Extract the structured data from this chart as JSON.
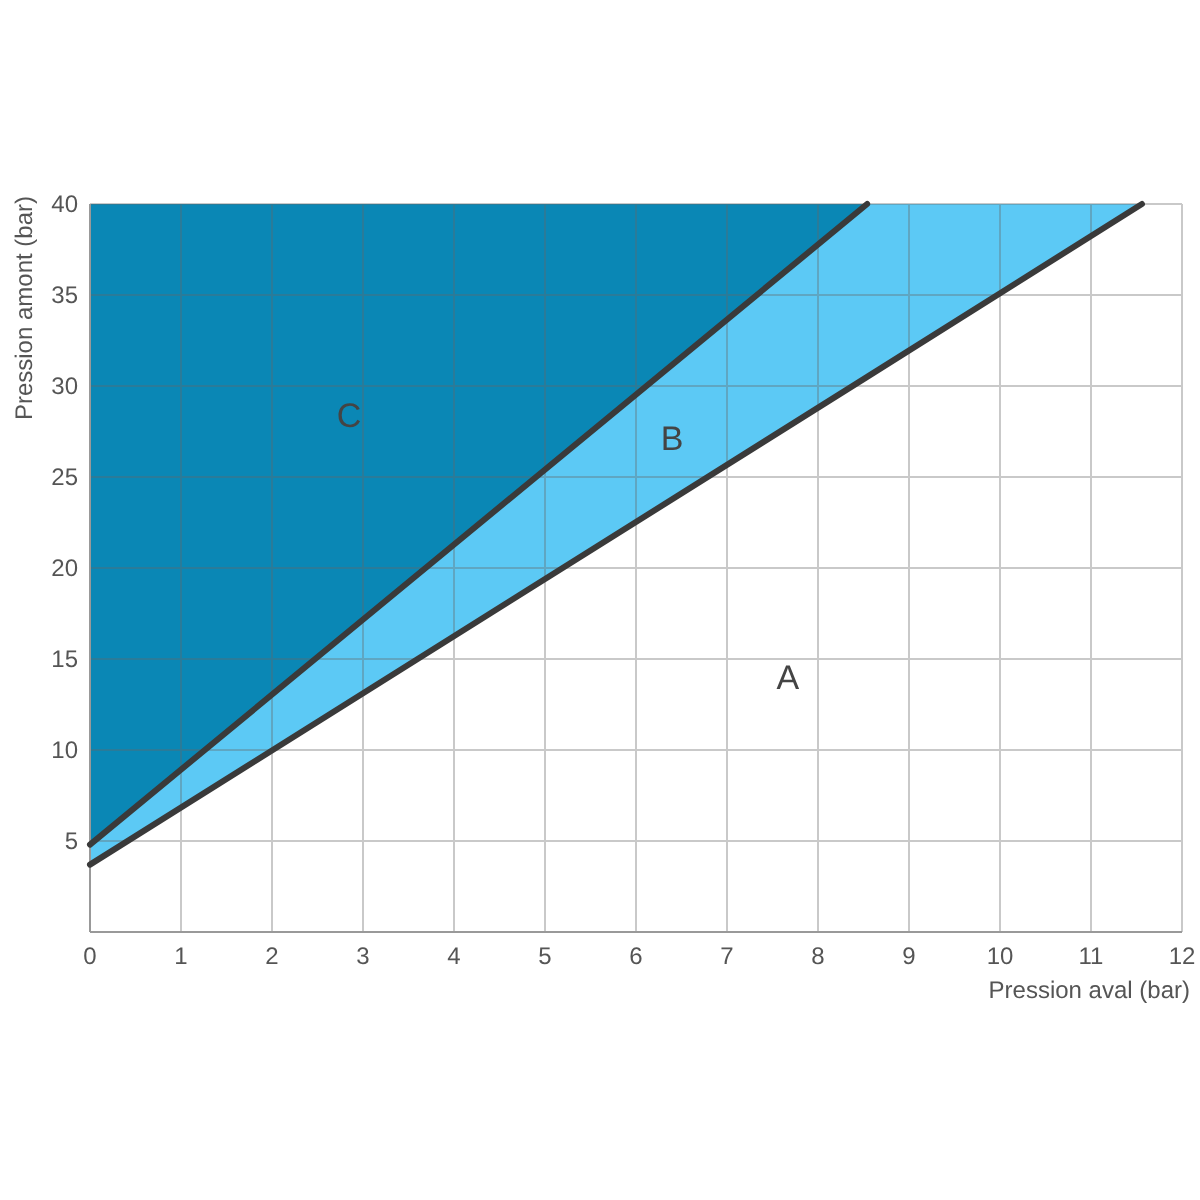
{
  "chart_data": {
    "type": "area",
    "stacked": true,
    "xlabel": "Pression aval (bar)",
    "ylabel": "Pression amont (bar)",
    "xlim": [
      0,
      12
    ],
    "ylim": [
      0,
      40
    ],
    "xticks": [
      0,
      1,
      2,
      3,
      4,
      5,
      6,
      7,
      8,
      9,
      10,
      11,
      12
    ],
    "yticks": [
      5,
      10,
      15,
      20,
      25,
      30,
      35,
      40
    ],
    "grid": true,
    "x": [
      0,
      8.54,
      11.56,
      12
    ],
    "series": [
      {
        "name": "A",
        "color": "#ffffff",
        "values": [
          3.7,
          30.5,
          40,
          40
        ]
      },
      {
        "name": "B",
        "color": "#5cc9f5",
        "values": [
          1.1,
          9.5,
          0,
          0
        ]
      },
      {
        "name": "C",
        "color": "#0a87b5",
        "values": [
          35.2,
          0,
          0,
          0
        ]
      }
    ]
  }
}
